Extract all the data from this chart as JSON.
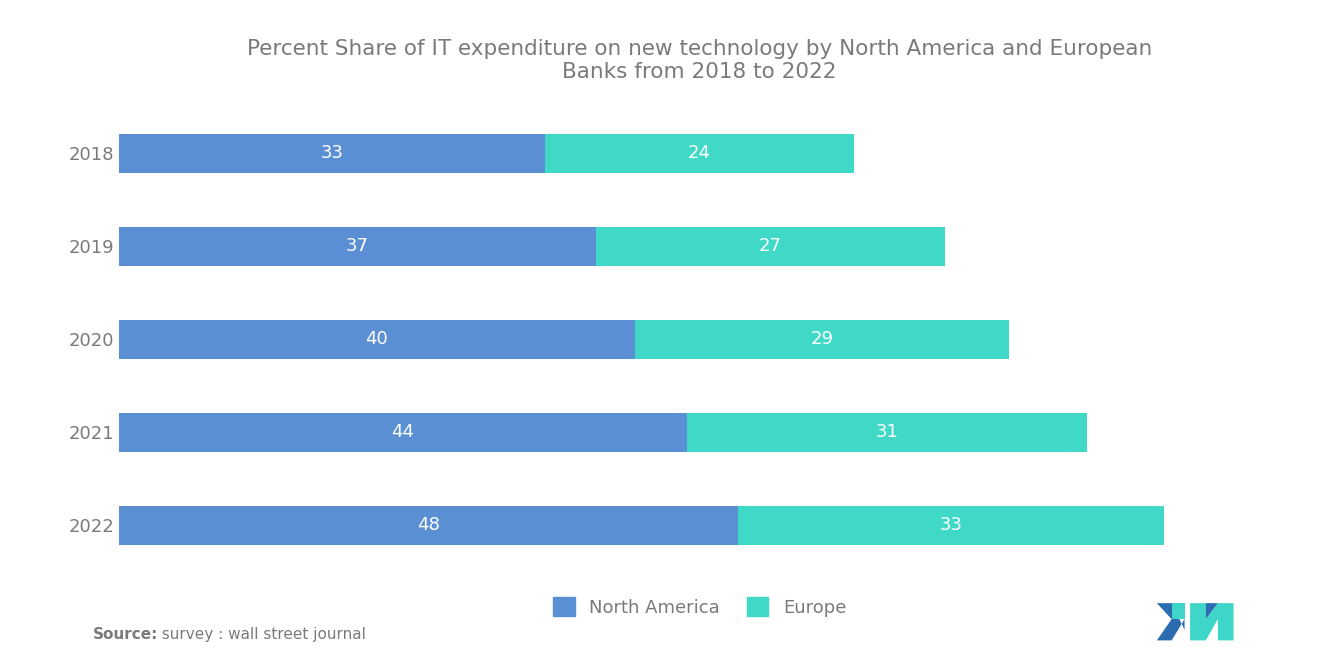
{
  "title": "Percent Share of IT expenditure on new technology by North America and European\nBanks from 2018 to 2022",
  "years": [
    "2018",
    "2019",
    "2020",
    "2021",
    "2022"
  ],
  "north_america": [
    33,
    37,
    40,
    44,
    48
  ],
  "europe": [
    24,
    27,
    29,
    31,
    33
  ],
  "color_north_america": "#5B8FD4",
  "color_europe": "#40D9C8",
  "bar_height": 0.42,
  "title_fontsize": 15.5,
  "label_fontsize": 13,
  "tick_fontsize": 13,
  "legend_fontsize": 13,
  "source_bold": "Source:",
  "source_rest": "  survey : wall street journal",
  "background_color": "#FFFFFF",
  "text_color": "#7A7A7A",
  "xlim": [
    0,
    90
  ],
  "logo_color_blue": "#2B6CB0",
  "logo_color_teal": "#3DD6C8"
}
